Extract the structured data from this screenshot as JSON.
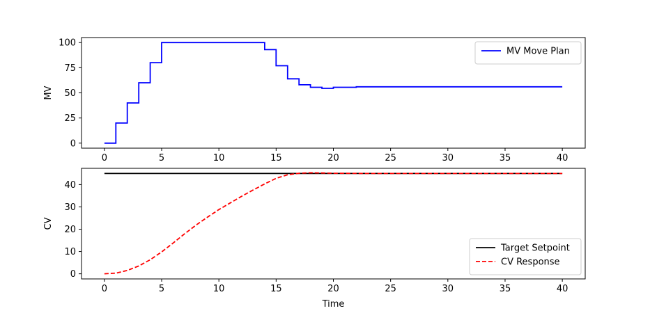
{
  "chart_data": [
    {
      "type": "line",
      "xlabel": "",
      "ylabel": "MV",
      "xlim": [
        -2,
        42
      ],
      "ylim": [
        -5,
        105
      ],
      "xticks": [
        0,
        5,
        10,
        15,
        20,
        25,
        30,
        35,
        40
      ],
      "yticks": [
        0,
        25,
        50,
        75,
        100
      ],
      "grid": false,
      "legend_position": "upper-right",
      "series": [
        {
          "name": "MV Move Plan",
          "color": "#0000ff",
          "linestyle": "solid",
          "step": true,
          "x": [
            0,
            1,
            2,
            3,
            4,
            5,
            6,
            7,
            8,
            9,
            10,
            11,
            12,
            13,
            14,
            15,
            16,
            17,
            18,
            19,
            20,
            21,
            22,
            23,
            24,
            25,
            26,
            27,
            28,
            29,
            30,
            31,
            32,
            33,
            34,
            35,
            36,
            37,
            38,
            39,
            40
          ],
          "y": [
            0,
            20,
            40,
            60,
            80,
            100,
            100,
            100,
            100,
            100,
            100,
            100,
            100,
            100,
            93,
            77,
            64,
            58,
            55.5,
            54.5,
            55.5,
            55.5,
            56,
            56,
            56,
            56,
            56,
            56,
            56,
            56,
            56,
            56,
            56,
            56,
            56,
            56,
            56,
            56,
            56,
            56,
            56
          ]
        }
      ]
    },
    {
      "type": "line",
      "xlabel": "Time",
      "ylabel": "CV",
      "xlim": [
        -2,
        42
      ],
      "ylim": [
        -2.3,
        47.3
      ],
      "xticks": [
        0,
        5,
        10,
        15,
        20,
        25,
        30,
        35,
        40
      ],
      "yticks": [
        0,
        10,
        20,
        30,
        40
      ],
      "grid": false,
      "legend_position": "lower-right",
      "series": [
        {
          "name": "Target Setpoint",
          "color": "#000000",
          "linestyle": "solid",
          "x": [
            0,
            40
          ],
          "y": [
            45,
            45
          ]
        },
        {
          "name": "CV Response",
          "color": "#ff0000",
          "linestyle": "dashed",
          "x": [
            0,
            1,
            2,
            3,
            4,
            5,
            6,
            7,
            8,
            9,
            10,
            11,
            12,
            13,
            14,
            15,
            16,
            17,
            18,
            19,
            20,
            21,
            22,
            23,
            24,
            25,
            26,
            27,
            28,
            29,
            30,
            31,
            32,
            33,
            34,
            35,
            36,
            37,
            38,
            39,
            40
          ],
          "y": [
            0,
            0.3,
            1.5,
            3.5,
            6.3,
            9.8,
            13.8,
            17.9,
            21.8,
            25.4,
            28.8,
            31.8,
            34.8,
            37.6,
            40.3,
            42.8,
            44.4,
            45.1,
            45.3,
            45.2,
            45.1,
            45.05,
            45.02,
            45,
            45,
            45,
            45,
            45,
            45,
            45,
            45,
            45,
            45,
            45,
            45,
            45,
            45,
            45,
            45,
            45,
            45
          ]
        }
      ]
    }
  ]
}
